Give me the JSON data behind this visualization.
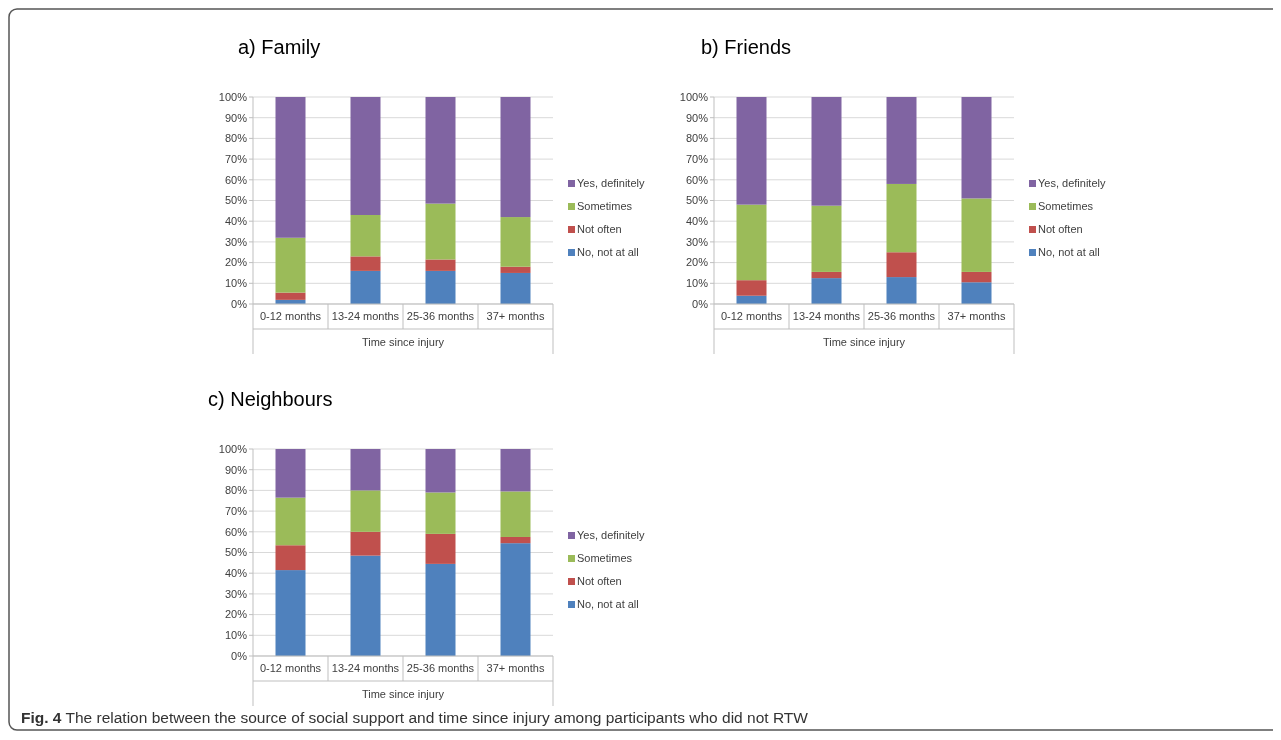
{
  "chart_data": [
    {
      "type": "bar",
      "title": "a)   Family",
      "xlabel": "Time since injury",
      "categories": [
        "0-12 months",
        "13-24 months",
        "25-36 months",
        "37+ months"
      ],
      "stacked": true,
      "grid": "y",
      "legend": "right",
      "ylim": [
        0,
        100
      ],
      "yticks": [
        {
          "value": 0,
          "label": "0%"
        },
        {
          "value": 10,
          "label": "10%"
        },
        {
          "value": 20,
          "label": "20%"
        },
        {
          "value": 30,
          "label": "30%"
        },
        {
          "value": 40,
          "label": "40%"
        },
        {
          "value": 50,
          "label": "50%"
        },
        {
          "value": 60,
          "label": "60%"
        },
        {
          "value": 70,
          "label": "70%"
        },
        {
          "value": 80,
          "label": "80%"
        },
        {
          "value": 90,
          "label": "90%"
        },
        {
          "value": 100,
          "label": "100%"
        }
      ],
      "series": [
        {
          "name": "No, not at all",
          "color": "#4f81bd",
          "values": [
            2,
            16,
            16,
            15
          ]
        },
        {
          "name": "Not often",
          "color": "#c0504d",
          "values": [
            3.5,
            7,
            5.5,
            3
          ]
        },
        {
          "name": "Sometimes",
          "color": "#9bbb59",
          "values": [
            26.5,
            20,
            27,
            24
          ]
        },
        {
          "name": "Yes, definitely",
          "color": "#8064a2",
          "values": [
            68,
            57,
            51.5,
            58
          ]
        }
      ],
      "annotations": [
        "Fig. 4 The relation between the source of social support and time since injury among participants who did not RTW"
      ]
    },
    {
      "type": "bar",
      "title": "b) Friends",
      "xlabel": "Time since injury",
      "categories": [
        "0-12 months",
        "13-24 months",
        "25-36 months",
        "37+ months"
      ],
      "stacked": true,
      "grid": "y",
      "legend": "right",
      "ylim": [
        0,
        100
      ],
      "yticks": [
        {
          "value": 0,
          "label": "0%"
        },
        {
          "value": 10,
          "label": "10%"
        },
        {
          "value": 20,
          "label": "20%"
        },
        {
          "value": 30,
          "label": "30%"
        },
        {
          "value": 40,
          "label": "40%"
        },
        {
          "value": 50,
          "label": "50%"
        },
        {
          "value": 60,
          "label": "60%"
        },
        {
          "value": 70,
          "label": "70%"
        },
        {
          "value": 80,
          "label": "80%"
        },
        {
          "value": 90,
          "label": "90%"
        },
        {
          "value": 100,
          "label": "100%"
        }
      ],
      "series": [
        {
          "name": "No, not at all",
          "color": "#4f81bd",
          "values": [
            4,
            12.5,
            13,
            10.5
          ]
        },
        {
          "name": "Not often",
          "color": "#c0504d",
          "values": [
            7.5,
            3,
            12,
            5
          ]
        },
        {
          "name": "Sometimes",
          "color": "#9bbb59",
          "values": [
            36.5,
            32,
            33,
            35.5
          ]
        },
        {
          "name": "Yes, definitely",
          "color": "#8064a2",
          "values": [
            52,
            52.5,
            42,
            49
          ]
        }
      ]
    },
    {
      "type": "bar",
      "title": "c) Neighbours",
      "xlabel": "Time since injury",
      "categories": [
        "0-12 months",
        "13-24 months",
        "25-36 months",
        "37+ months"
      ],
      "stacked": true,
      "grid": "y",
      "legend": "right",
      "ylim": [
        0,
        100
      ],
      "yticks": [
        {
          "value": 0,
          "label": "0%"
        },
        {
          "value": 10,
          "label": "10%"
        },
        {
          "value": 20,
          "label": "20%"
        },
        {
          "value": 30,
          "label": "30%"
        },
        {
          "value": 40,
          "label": "40%"
        },
        {
          "value": 50,
          "label": "50%"
        },
        {
          "value": 60,
          "label": "60%"
        },
        {
          "value": 70,
          "label": "70%"
        },
        {
          "value": 80,
          "label": "80%"
        },
        {
          "value": 90,
          "label": "90%"
        },
        {
          "value": 100,
          "label": "100%"
        }
      ],
      "series": [
        {
          "name": "No, not at all",
          "color": "#4f81bd",
          "values": [
            41.5,
            48.5,
            44.5,
            54.5
          ]
        },
        {
          "name": "Not often",
          "color": "#c0504d",
          "values": [
            12,
            11.5,
            14.5,
            3
          ]
        },
        {
          "name": "Sometimes",
          "color": "#9bbb59",
          "values": [
            23,
            20,
            20,
            22
          ]
        },
        {
          "name": "Yes, definitely",
          "color": "#8064a2",
          "values": [
            23.5,
            20,
            21,
            20.5
          ]
        }
      ]
    }
  ]
}
